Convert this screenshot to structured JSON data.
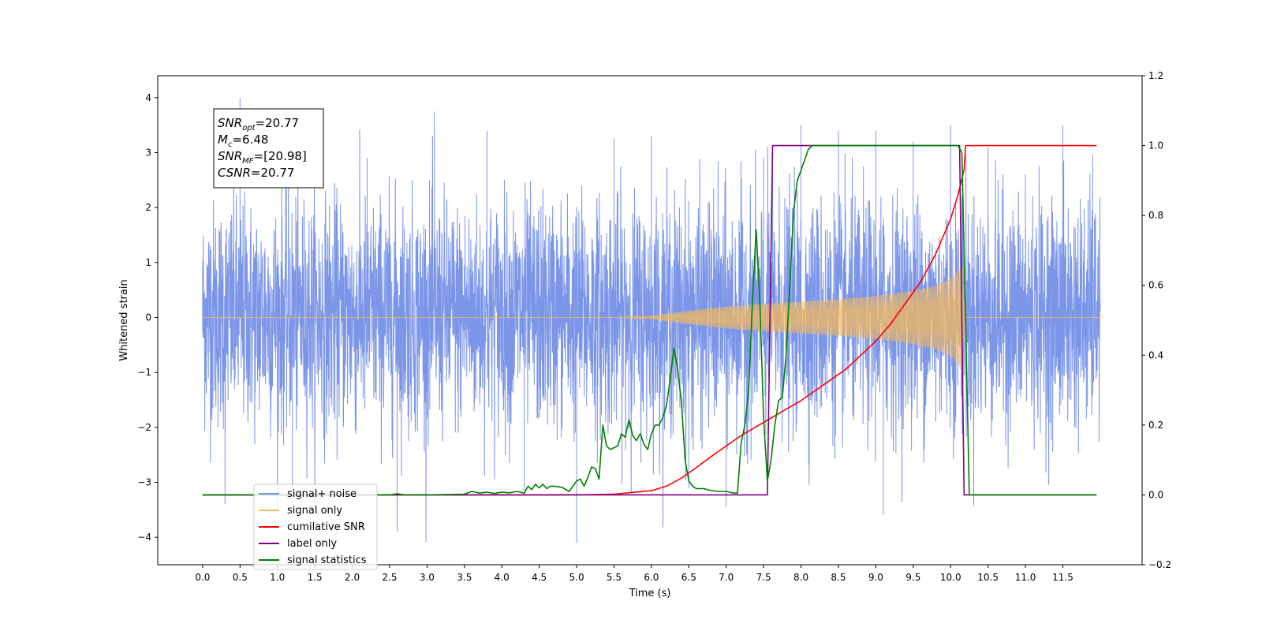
{
  "chart_data": {
    "type": "line",
    "title": "",
    "xlabel": "Time (s)",
    "ylabel": "Whitened strain",
    "y2label": "",
    "xlim": [
      -0.6,
      12.56
    ],
    "ylim": [
      -4.5,
      4.4
    ],
    "y2lim": [
      -0.2,
      1.2
    ],
    "xticks": [
      0.0,
      0.5,
      1.0,
      1.5,
      2.0,
      2.5,
      3.0,
      3.5,
      4.0,
      4.5,
      5.0,
      5.5,
      6.0,
      6.5,
      7.0,
      7.5,
      8.0,
      8.5,
      9.0,
      9.5,
      10.0,
      10.5,
      11.0,
      11.5
    ],
    "xtick_labels": [
      "0.0",
      "0.5",
      "1.0",
      "1.5",
      "2.0",
      "2.5",
      "3.0",
      "3.5",
      "4.0",
      "4.5",
      "5.0",
      "5.5",
      "6.0",
      "6.5",
      "7.0",
      "7.5",
      "8.0",
      "8.5",
      "9.0",
      "9.5",
      "10.0",
      "10.5",
      "11.0",
      "11.5"
    ],
    "yticks": [
      -4,
      -3,
      -2,
      -1,
      0,
      1,
      2,
      3,
      4
    ],
    "ytick_labels": [
      "−4",
      "−3",
      "−2",
      "−1",
      "0",
      "1",
      "2",
      "3",
      "4"
    ],
    "y2ticks": [
      -0.2,
      0.0,
      0.2,
      0.4,
      0.6,
      0.8,
      1.0,
      1.2
    ],
    "y2tick_labels": [
      "−0.2",
      "0.0",
      "0.2",
      "0.4",
      "0.6",
      "0.8",
      "1.0",
      "1.2"
    ],
    "grid": false,
    "legend_position": "bottom-left",
    "annotation": {
      "lines": [
        {
          "symbol": "SNR",
          "subscript": "opt",
          "value": "=20.77"
        },
        {
          "symbol": "M",
          "subscript": "c",
          "value": "=6.48"
        },
        {
          "symbol": "SNR",
          "subscript": "MF",
          "value": "=[20.98]"
        },
        {
          "symbol": "CSNR",
          "subscript": "",
          "value": "=20.77"
        }
      ]
    },
    "series": [
      {
        "name": "signal+ noise",
        "axis": "left",
        "color": "#7893e8",
        "style": "noise",
        "x_range": [
          0.0,
          12.0
        ],
        "typical_envelope": [
          -2.4,
          2.5
        ],
        "x": [
          0.0,
          0.1,
          0.3,
          0.5,
          1.2,
          2.2,
          2.6,
          3.1,
          3.8,
          4.3,
          5.0,
          5.5,
          6.0,
          6.5,
          7.0,
          7.5,
          8.0,
          8.5,
          9.0,
          9.1,
          9.5,
          10.0,
          10.15,
          10.5,
          11.0,
          11.5,
          11.9
        ],
        "peaks": [
          1.0,
          1.3,
          -3.4,
          4.0,
          -3.3,
          2.9,
          -3.9,
          3.75,
          3.4,
          -3.15,
          -4.1,
          3.25,
          3.3,
          -3.1,
          -3.45,
          2.9,
          3.5,
          3.4,
          3.4,
          -3.6,
          3.2,
          3.5,
          2.2,
          3.1,
          2.6,
          3.5,
          2.95
        ]
      },
      {
        "name": "signal only",
        "axis": "left",
        "color": "#f5b95e",
        "style": "chirp",
        "x": [
          0.0,
          5.5,
          6.0,
          6.5,
          7.0,
          7.5,
          8.0,
          8.5,
          9.0,
          9.5,
          9.8,
          10.0,
          10.1,
          10.15,
          10.2,
          12.0
        ],
        "envelope": [
          0.0,
          0.0,
          0.03,
          0.12,
          0.2,
          0.25,
          0.29,
          0.33,
          0.39,
          0.48,
          0.58,
          0.7,
          0.85,
          1.0,
          0.0,
          0.0
        ]
      },
      {
        "name": "cumilative SNR",
        "axis": "right",
        "color": "#ff0000",
        "x": [
          0.0,
          5.0,
          5.5,
          6.0,
          6.2,
          6.4,
          6.6,
          6.8,
          7.0,
          7.2,
          7.4,
          7.6,
          7.8,
          8.0,
          8.2,
          8.4,
          8.6,
          8.8,
          9.0,
          9.2,
          9.4,
          9.6,
          9.8,
          10.0,
          10.1,
          10.18,
          10.2,
          11.0,
          11.5,
          11.95
        ],
        "values": [
          0.0,
          0.0,
          0.002,
          0.012,
          0.025,
          0.048,
          0.078,
          0.11,
          0.14,
          0.17,
          0.195,
          0.22,
          0.245,
          0.27,
          0.3,
          0.33,
          0.36,
          0.4,
          0.44,
          0.49,
          0.55,
          0.61,
          0.69,
          0.79,
          0.86,
          0.93,
          1.0,
          1.0,
          1.0,
          1.0
        ]
      },
      {
        "name": "label only",
        "axis": "right",
        "color": "#800080",
        "x": [
          0.0,
          7.55,
          7.62,
          10.12,
          10.18,
          11.95
        ],
        "values": [
          0.0,
          0.0,
          1.0,
          1.0,
          0.0,
          0.0
        ]
      },
      {
        "name": "signal statistics",
        "axis": "right",
        "color": "#008000",
        "x": [
          0.0,
          2.5,
          2.6,
          2.7,
          3.0,
          3.5,
          3.6,
          3.7,
          3.8,
          3.9,
          4.0,
          4.1,
          4.2,
          4.3,
          4.35,
          4.4,
          4.45,
          4.5,
          4.55,
          4.6,
          4.65,
          4.7,
          4.8,
          4.9,
          5.0,
          5.05,
          5.1,
          5.15,
          5.2,
          5.25,
          5.3,
          5.35,
          5.4,
          5.45,
          5.5,
          5.55,
          5.6,
          5.65,
          5.7,
          5.75,
          5.8,
          5.85,
          5.9,
          5.95,
          6.0,
          6.05,
          6.1,
          6.15,
          6.2,
          6.25,
          6.3,
          6.35,
          6.4,
          6.45,
          6.5,
          6.55,
          6.6,
          6.7,
          6.8,
          6.9,
          7.0,
          7.1,
          7.15,
          7.2,
          7.25,
          7.3,
          7.35,
          7.4,
          7.45,
          7.5,
          7.55,
          7.6,
          7.65,
          7.7,
          7.75,
          7.8,
          7.85,
          7.9,
          7.95,
          8.0,
          8.05,
          8.1,
          8.15,
          8.2,
          8.3,
          8.5,
          9.0,
          9.5,
          10.0,
          10.1,
          10.15,
          10.2,
          10.25,
          11.0,
          11.5,
          11.95
        ],
        "values": [
          0.0,
          0.0,
          0.003,
          0.0,
          0.0,
          0.002,
          0.01,
          0.005,
          0.008,
          0.004,
          0.008,
          0.006,
          0.01,
          0.005,
          0.025,
          0.015,
          0.03,
          0.02,
          0.03,
          0.018,
          0.025,
          0.025,
          0.022,
          0.01,
          0.04,
          0.045,
          0.025,
          0.05,
          0.08,
          0.075,
          0.045,
          0.2,
          0.14,
          0.13,
          0.135,
          0.14,
          0.175,
          0.165,
          0.215,
          0.17,
          0.155,
          0.175,
          0.145,
          0.13,
          0.175,
          0.2,
          0.2,
          0.22,
          0.255,
          0.33,
          0.42,
          0.36,
          0.27,
          0.1,
          0.04,
          0.025,
          0.018,
          0.018,
          0.012,
          0.01,
          0.01,
          0.005,
          0.005,
          0.15,
          0.2,
          0.3,
          0.55,
          0.76,
          0.55,
          0.22,
          0.04,
          0.1,
          0.2,
          0.27,
          0.28,
          0.4,
          0.6,
          0.81,
          0.9,
          0.93,
          0.96,
          0.99,
          1.0,
          1.0,
          1.0,
          1.0,
          1.0,
          1.0,
          1.0,
          1.0,
          0.98,
          0.5,
          0.0,
          0.0,
          0.0,
          0.0
        ]
      }
    ]
  }
}
